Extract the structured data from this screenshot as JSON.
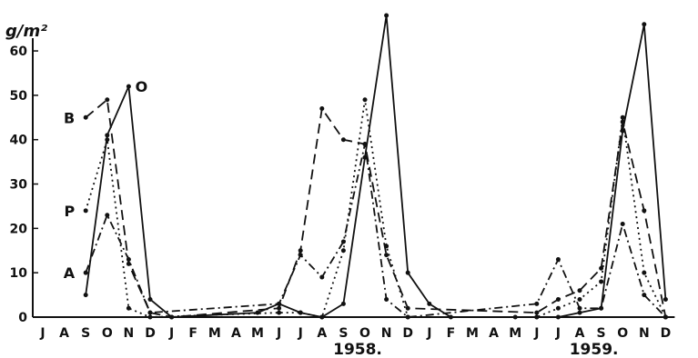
{
  "chart_data": {
    "type": "line",
    "ylabel": "g/m²",
    "ylim": [
      0,
      60
    ],
    "yticks": [
      0,
      10,
      20,
      30,
      40,
      50,
      60
    ],
    "grid": false,
    "x_labels": [
      "J",
      "A",
      "S",
      "O",
      "N",
      "D",
      "J",
      "F",
      "M",
      "A",
      "M",
      "J",
      "J",
      "A",
      "S",
      "O",
      "N",
      "D",
      "J",
      "F",
      "M",
      "A",
      "M",
      "J",
      "J",
      "A",
      "S",
      "O",
      "N",
      "D"
    ],
    "year_labels": [
      {
        "text": "1958.",
        "at_index": 15
      },
      {
        "text": "1959.",
        "at_index": 26
      }
    ],
    "series": [
      {
        "name": "O",
        "style": "solid",
        "points": [
          [
            2,
            5
          ],
          [
            3,
            41
          ],
          [
            4,
            52
          ],
          [
            5,
            4
          ],
          [
            6,
            0
          ],
          [
            10,
            1
          ],
          [
            11,
            3
          ],
          [
            12,
            1
          ],
          [
            13,
            0
          ],
          [
            14,
            3
          ],
          [
            15,
            36
          ],
          [
            16,
            68
          ],
          [
            17,
            10
          ],
          [
            18,
            3
          ],
          [
            19,
            0
          ],
          [
            22,
            0
          ],
          [
            23,
            0
          ],
          [
            24,
            0
          ],
          [
            25,
            1
          ],
          [
            26,
            2
          ],
          [
            27,
            42
          ],
          [
            28,
            66
          ],
          [
            29,
            4
          ]
        ]
      },
      {
        "name": "B",
        "style": "dashed",
        "points": [
          [
            2,
            45
          ],
          [
            3,
            49
          ],
          [
            4,
            12
          ],
          [
            5,
            1
          ],
          [
            6,
            0
          ],
          [
            11,
            2
          ],
          [
            12,
            15
          ],
          [
            13,
            47
          ],
          [
            14,
            40
          ],
          [
            15,
            39
          ],
          [
            16,
            14
          ],
          [
            17,
            2
          ],
          [
            23,
            1
          ],
          [
            24,
            4
          ],
          [
            25,
            6
          ],
          [
            26,
            11
          ],
          [
            27,
            44
          ],
          [
            28,
            24
          ],
          [
            29,
            0
          ]
        ]
      },
      {
        "name": "P",
        "style": "dotted",
        "points": [
          [
            2,
            24
          ],
          [
            3,
            40
          ],
          [
            4,
            2
          ],
          [
            5,
            0
          ],
          [
            11,
            1
          ],
          [
            12,
            1
          ],
          [
            13,
            0
          ],
          [
            14,
            15
          ],
          [
            15,
            49
          ],
          [
            16,
            16
          ],
          [
            17,
            0
          ],
          [
            23,
            0
          ],
          [
            24,
            2
          ],
          [
            25,
            4
          ],
          [
            26,
            8
          ],
          [
            27,
            45
          ],
          [
            28,
            10
          ],
          [
            29,
            0
          ]
        ]
      },
      {
        "name": "A",
        "style": "dash-dot",
        "points": [
          [
            2,
            10
          ],
          [
            3,
            23
          ],
          [
            4,
            13
          ],
          [
            5,
            1
          ],
          [
            11,
            3
          ],
          [
            12,
            14
          ],
          [
            13,
            9
          ],
          [
            14,
            17
          ],
          [
            15,
            39
          ],
          [
            16,
            4
          ],
          [
            17,
            0
          ],
          [
            23,
            3
          ],
          [
            24,
            13
          ],
          [
            25,
            2
          ],
          [
            26,
            2
          ],
          [
            27,
            21
          ],
          [
            28,
            5
          ],
          [
            29,
            0
          ]
        ]
      }
    ]
  }
}
